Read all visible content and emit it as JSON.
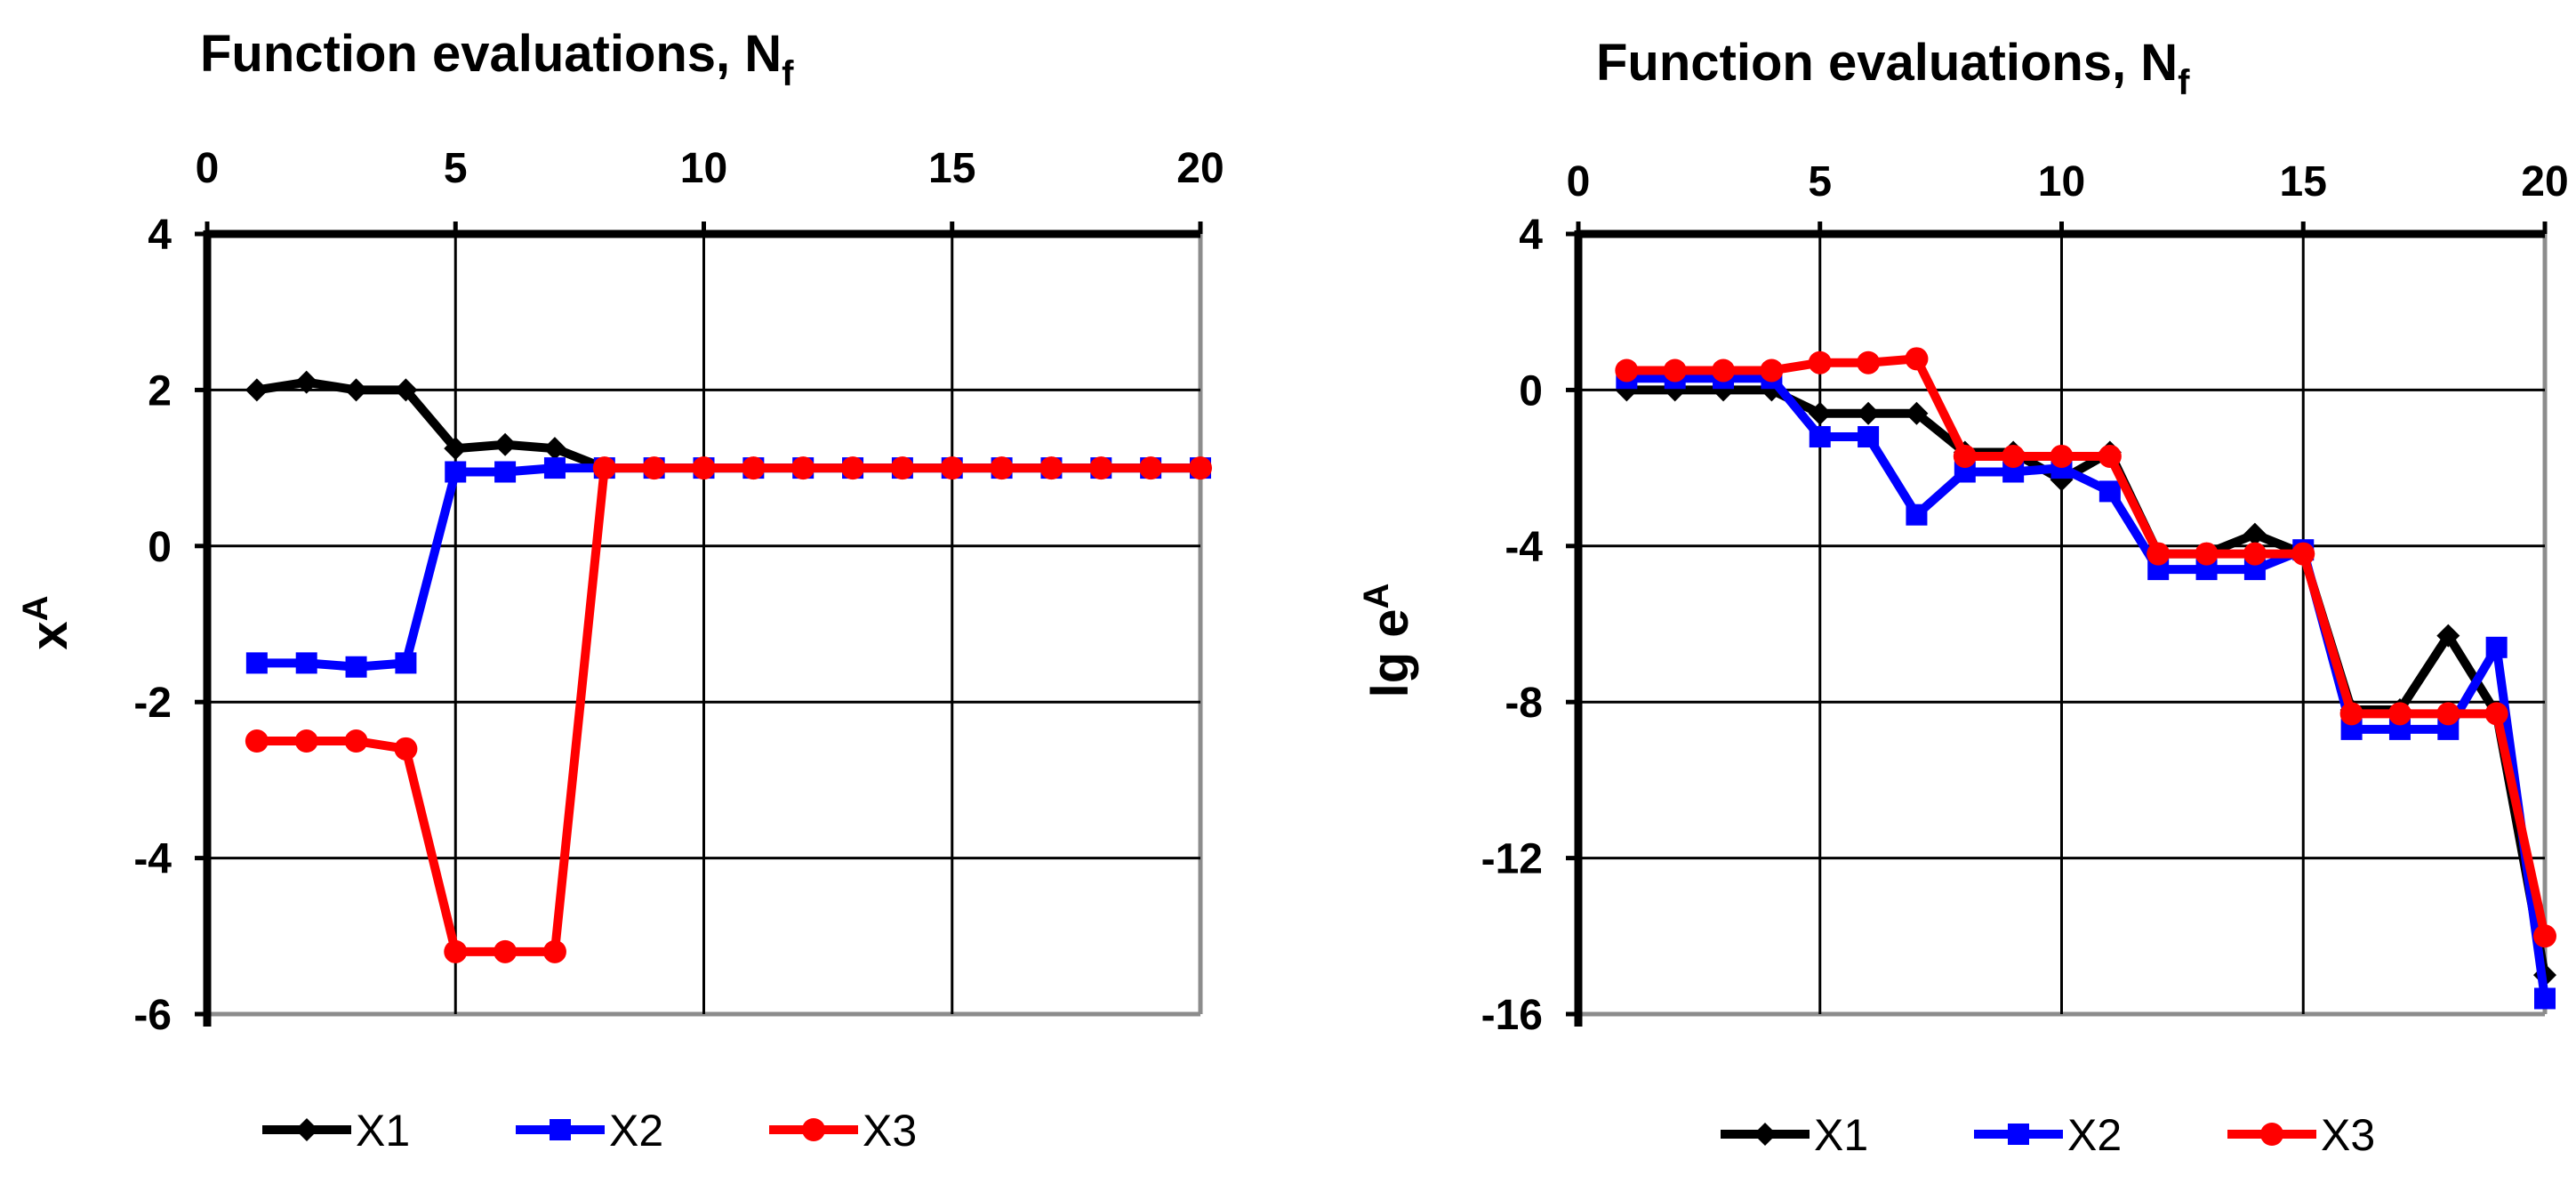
{
  "chart_data": [
    {
      "type": "line",
      "title": "Function evaluations, N",
      "title_sub": "f",
      "xlabel": "Function evaluations, N",
      "ylabel": "x",
      "ylabel_sup": "A",
      "x_axis_position": "top",
      "xlim": [
        0,
        20
      ],
      "ylim": [
        -6,
        4
      ],
      "x_ticks": [
        "0",
        "5",
        "10",
        "15",
        "20"
      ],
      "y_ticks": [
        "4",
        "2",
        "0",
        "-2",
        "-4",
        "-6"
      ],
      "grid": true,
      "legend": "bottom",
      "x": [
        1,
        2,
        3,
        4,
        5,
        6,
        7,
        8,
        9,
        10,
        11,
        12,
        13,
        14,
        15,
        16,
        17,
        18,
        19,
        20
      ],
      "series": [
        {
          "name": "X1",
          "color": "#000000",
          "marker": "diamond",
          "values": [
            2.0,
            2.1,
            2.0,
            2.0,
            1.25,
            1.3,
            1.25,
            1.0,
            1.0,
            1.0,
            1.0,
            1.0,
            1.0,
            1.0,
            1.0,
            1.0,
            1.0,
            1.0,
            1.0,
            1.0
          ]
        },
        {
          "name": "X2",
          "color": "#0000ff",
          "marker": "square",
          "values": [
            -1.5,
            -1.5,
            -1.55,
            -1.5,
            0.95,
            0.95,
            1.0,
            1.0,
            1.0,
            1.0,
            1.0,
            1.0,
            1.0,
            1.0,
            1.0,
            1.0,
            1.0,
            1.0,
            1.0,
            1.0
          ]
        },
        {
          "name": "X3",
          "color": "#ff0000",
          "marker": "circle",
          "values": [
            -2.5,
            -2.5,
            -2.5,
            -2.6,
            -5.2,
            -5.2,
            -5.2,
            1.0,
            1.0,
            1.0,
            1.0,
            1.0,
            1.0,
            1.0,
            1.0,
            1.0,
            1.0,
            1.0,
            1.0,
            1.0
          ]
        }
      ]
    },
    {
      "type": "line",
      "title": "Function evaluations, N",
      "title_sub": "f",
      "xlabel": "Function evaluations, N",
      "ylabel": "lg e",
      "ylabel_sup": "A",
      "x_axis_position": "top",
      "xlim": [
        0,
        20
      ],
      "ylim": [
        -16,
        4
      ],
      "x_ticks": [
        "0",
        "5",
        "10",
        "15",
        "20"
      ],
      "y_ticks": [
        "4",
        "0",
        "-4",
        "-8",
        "-12",
        "-16"
      ],
      "grid": true,
      "legend": "bottom",
      "x": [
        1,
        2,
        3,
        4,
        5,
        6,
        7,
        8,
        9,
        10,
        11,
        12,
        13,
        14,
        15,
        16,
        17,
        18,
        19,
        20
      ],
      "series": [
        {
          "name": "X1",
          "color": "#000000",
          "marker": "diamond",
          "values": [
            0.0,
            0.0,
            0.0,
            0.0,
            -0.6,
            -0.6,
            -0.6,
            -1.6,
            -1.6,
            -2.3,
            -1.6,
            -4.2,
            -4.2,
            -3.7,
            -4.2,
            -8.2,
            -8.2,
            -6.3,
            -8.3,
            -15.0
          ]
        },
        {
          "name": "X2",
          "color": "#0000ff",
          "marker": "square",
          "values": [
            0.3,
            0.3,
            0.3,
            0.3,
            -1.2,
            -1.2,
            -3.2,
            -2.1,
            -2.1,
            -2.0,
            -2.6,
            -4.6,
            -4.6,
            -4.6,
            -4.1,
            -8.7,
            -8.7,
            -8.7,
            -6.6,
            -15.6
          ]
        },
        {
          "name": "X3",
          "color": "#ff0000",
          "marker": "circle",
          "values": [
            0.5,
            0.5,
            0.5,
            0.5,
            0.7,
            0.7,
            0.8,
            -1.7,
            -1.7,
            -1.7,
            -1.7,
            -4.2,
            -4.2,
            -4.2,
            -4.2,
            -8.3,
            -8.3,
            -8.3,
            -8.3,
            -14.0
          ]
        }
      ]
    }
  ]
}
